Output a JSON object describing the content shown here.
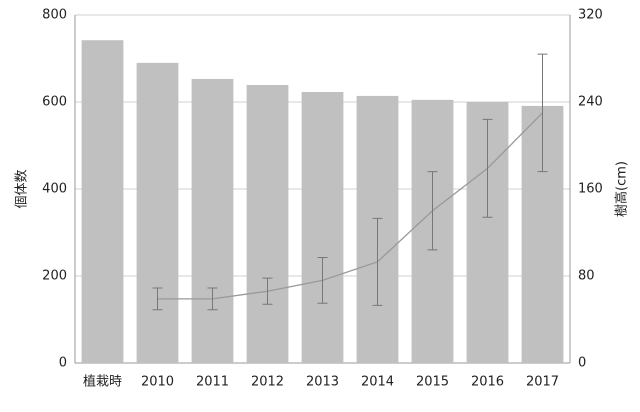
{
  "chart_data": {
    "type": "bar-line",
    "categories": [
      "植栽時",
      "2010",
      "2011",
      "2012",
      "2013",
      "2014",
      "2015",
      "2016",
      "2017"
    ],
    "series": [
      {
        "name": "個体数",
        "type": "bar",
        "color": "#c0c0c0",
        "values": [
          742,
          690,
          653,
          639,
          623,
          614,
          605,
          600,
          591
        ]
      },
      {
        "name": "樹高",
        "type": "line",
        "axis": "y2",
        "color": "#999999",
        "values": [
          null,
          59,
          59,
          66,
          76,
          93,
          140,
          179,
          230
        ],
        "errors": [
          null,
          10,
          10,
          12,
          21,
          40,
          36,
          45,
          54
        ]
      }
    ],
    "ylabel": "個体数",
    "y2label": "樹高(cm)",
    "ylim": [
      0,
      800
    ],
    "yticks": [
      0,
      200,
      400,
      600,
      800
    ],
    "y2lim": [
      0,
      320
    ],
    "y2ticks": [
      0,
      80,
      160,
      240,
      320
    ],
    "grid": true
  }
}
